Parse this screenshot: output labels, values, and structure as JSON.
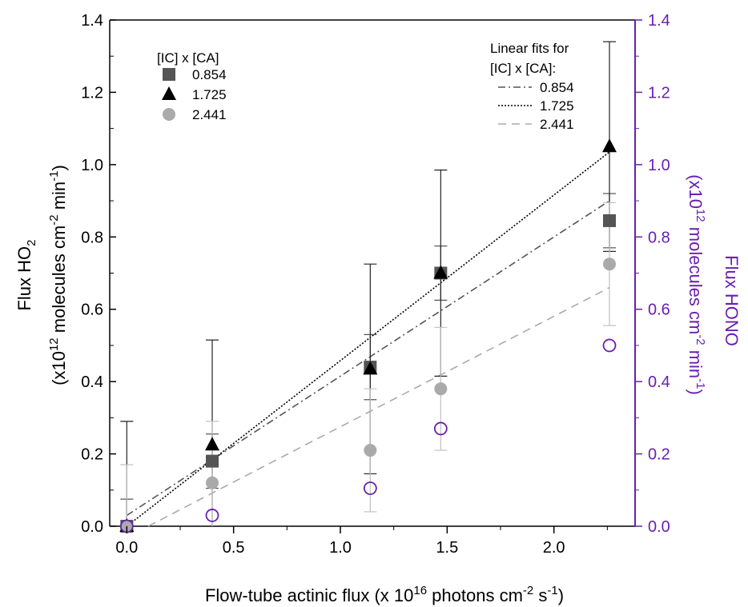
{
  "chart_data": {
    "type": "scatter",
    "x_axis": {
      "label_parts": [
        "Flow-tube actinic flux (x 10",
        "16",
        " photons cm",
        "-2",
        " s",
        "-1",
        ")"
      ],
      "range": [
        -0.08,
        2.38
      ],
      "ticks": [
        "0.0",
        "0.5",
        "1.0",
        "1.5",
        "2.0"
      ],
      "tick_values": [
        0.0,
        0.5,
        1.0,
        1.5,
        2.0
      ]
    },
    "y_left_axis": {
      "title": "Flux HO",
      "title_sub": "2",
      "unit_parts": [
        "(x10",
        "12",
        " molecules cm",
        "-2",
        " min",
        "-1",
        ")"
      ],
      "range": [
        0,
        1.4
      ],
      "ticks": [
        "0.0",
        "0.2",
        "0.4",
        "0.6",
        "0.8",
        "1.0",
        "1.2",
        "1.4"
      ],
      "tick_values": [
        0,
        0.2,
        0.4,
        0.6,
        0.8,
        1.0,
        1.2,
        1.4
      ]
    },
    "y_right_axis": {
      "title": "Flux HONO",
      "unit_parts": [
        "(x10",
        "12",
        " molecules cm",
        "-2",
        " min",
        "-1",
        ")"
      ],
      "range": [
        0,
        1.4
      ],
      "ticks": [
        "0.0",
        "0.2",
        "0.4",
        "0.6",
        "0.8",
        "1.0",
        "1.2",
        "1.4"
      ],
      "tick_values": [
        0,
        0.2,
        0.4,
        0.6,
        0.8,
        1.0,
        1.2,
        1.4
      ]
    },
    "grid": false,
    "x": [
      0.0,
      0.4,
      1.14,
      1.47,
      2.26
    ],
    "series": [
      {
        "name": "0.854",
        "marker": "square",
        "color": "#555555",
        "y": [
          0.0,
          0.18,
          0.44,
          0.7,
          0.845
        ],
        "error": [
          0.075,
          0.075,
          0.09,
          0.075,
          0.075
        ],
        "error_color": "#555555"
      },
      {
        "name": "1.725",
        "marker": "triangle",
        "color": "#000000",
        "y": [
          0.0,
          0.225,
          0.435,
          0.7,
          1.05
        ],
        "error": [
          0.29,
          0.29,
          0.29,
          0.285,
          0.29
        ],
        "error_color": "#222222"
      },
      {
        "name": "2.441",
        "marker": "circle",
        "color": "#aaaaaa",
        "y": [
          0.0,
          0.12,
          0.21,
          0.38,
          0.725
        ],
        "error": [
          0.17,
          0.17,
          0.17,
          0.17,
          0.17
        ],
        "error_color": "#c0c0c0"
      },
      {
        "axis": "right",
        "marker": "open-circle",
        "color": "#6a1fb0",
        "y": [
          0.0,
          0.03,
          0.105,
          0.27,
          0.5
        ]
      }
    ],
    "fits": [
      {
        "name": "0.854",
        "style": "dash-dot",
        "color": "#555555",
        "x": [
          0.0,
          2.26
        ],
        "y": [
          0.03,
          0.9
        ]
      },
      {
        "name": "1.725",
        "style": "dotted",
        "color": "#000000",
        "x": [
          0.0,
          2.26
        ],
        "y": [
          0.0,
          1.035
        ]
      },
      {
        "name": "2.441",
        "style": "dashed",
        "color": "#aaaaaa",
        "x": [
          0.1,
          2.26
        ],
        "y": [
          0.0,
          0.66
        ]
      }
    ],
    "legend_left": {
      "title": "[IC] x [CA]",
      "entries": [
        "0.854",
        "1.725",
        "2.441"
      ],
      "placement": "top-left"
    },
    "legend_right": {
      "title_lines": [
        "Linear fits for",
        "[IC] x [CA]:"
      ],
      "entries": [
        "0.854",
        "1.725",
        "2.441"
      ],
      "placement": "top-right"
    },
    "colors": {
      "axis": "#000000",
      "right_axis": "#6a1fb0"
    }
  }
}
